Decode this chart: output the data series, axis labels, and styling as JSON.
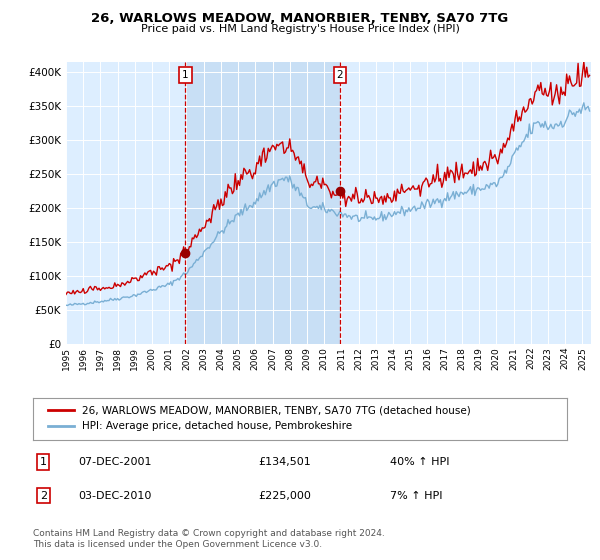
{
  "title": "26, WARLOWS MEADOW, MANORBIER, TENBY, SA70 7TG",
  "subtitle": "Price paid vs. HM Land Registry's House Price Index (HPI)",
  "ylabel_ticks": [
    "£0",
    "£50K",
    "£100K",
    "£150K",
    "£200K",
    "£250K",
    "£300K",
    "£350K",
    "£400K"
  ],
  "ytick_values": [
    0,
    50000,
    100000,
    150000,
    200000,
    250000,
    300000,
    350000,
    400000
  ],
  "ylim": [
    0,
    415000
  ],
  "xlim_start": 1995.0,
  "xlim_end": 2025.5,
  "transaction1_date": 2001.92,
  "transaction1_price": 134501,
  "transaction2_date": 2010.92,
  "transaction2_price": 225000,
  "legend_line1": "26, WARLOWS MEADOW, MANORBIER, TENBY, SA70 7TG (detached house)",
  "legend_line2": "HPI: Average price, detached house, Pembrokeshire",
  "annotation1_date": "07-DEC-2001",
  "annotation1_price": "£134,501",
  "annotation1_hpi": "40% ↑ HPI",
  "annotation2_date": "03-DEC-2010",
  "annotation2_price": "£225,000",
  "annotation2_hpi": "7% ↑ HPI",
  "footer": "Contains HM Land Registry data © Crown copyright and database right 2024.\nThis data is licensed under the Open Government Licence v3.0.",
  "line_color_red": "#cc0000",
  "line_color_blue": "#7aafd4",
  "bg_color": "#ddeeff",
  "shade_color": "#c8dff5",
  "transaction_box_color": "#cc0000",
  "xtick_years": [
    1995,
    1996,
    1997,
    1998,
    1999,
    2000,
    2001,
    2002,
    2003,
    2004,
    2005,
    2006,
    2007,
    2008,
    2009,
    2010,
    2011,
    2012,
    2013,
    2014,
    2015,
    2016,
    2017,
    2018,
    2019,
    2020,
    2021,
    2022,
    2023,
    2024,
    2025
  ]
}
